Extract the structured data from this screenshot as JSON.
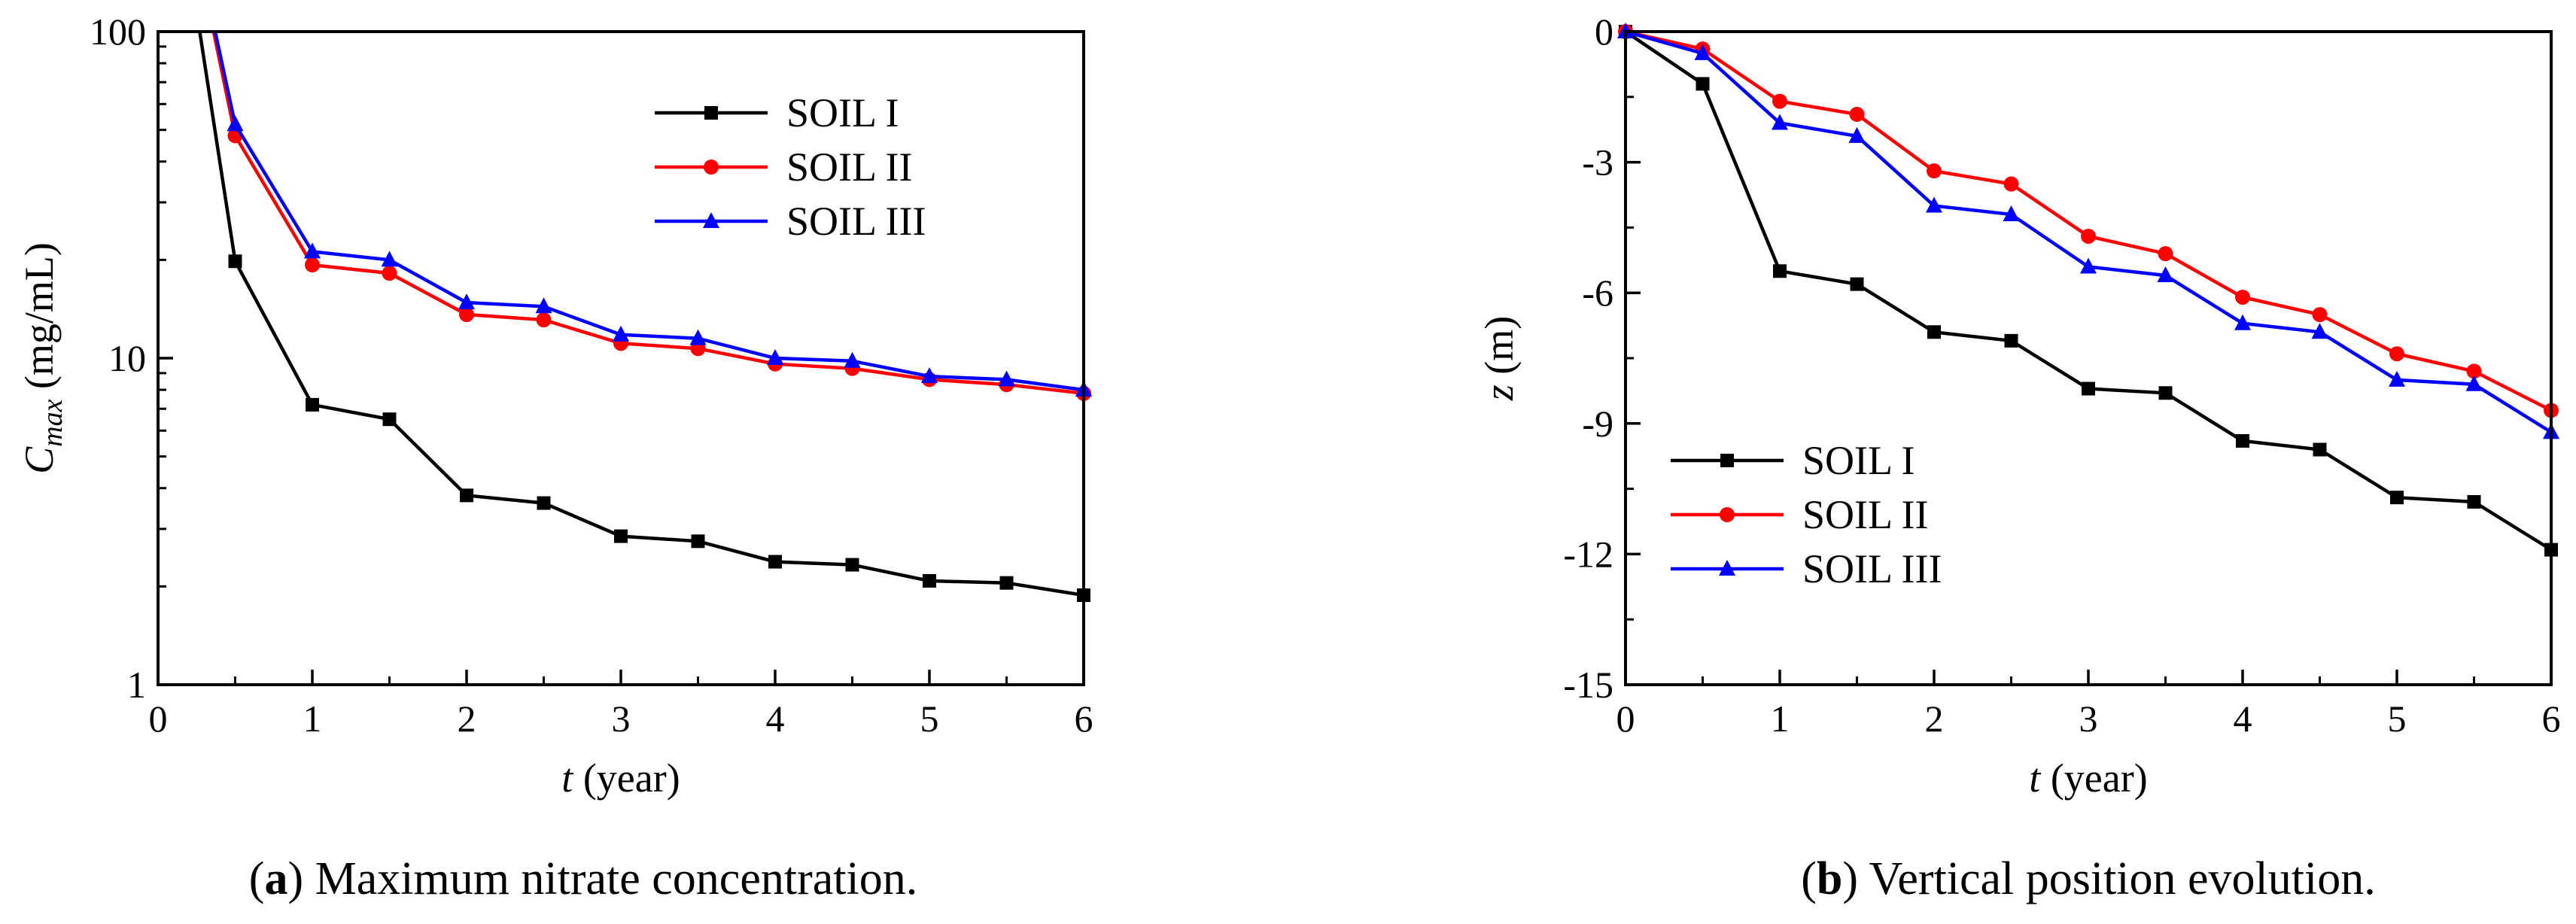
{
  "chart_data": [
    {
      "type": "line",
      "panel_label": "a",
      "caption": "Maximum nitrate concentration.",
      "xlabel_var": "t",
      "xlabel_unit": " (year)",
      "ylabel_var": "C",
      "ylabel_sub": "max",
      "ylabel_unit": " (mg/mL)",
      "xlim": [
        0,
        6
      ],
      "ylim": [
        1,
        100
      ],
      "yscale": "log",
      "xticks": [
        "0",
        "1",
        "2",
        "3",
        "4",
        "5",
        "6"
      ],
      "yticks": [
        {
          "value": 1,
          "label": "1"
        },
        {
          "value": 10,
          "label": "10"
        },
        {
          "value": 100,
          "label": "100"
        }
      ],
      "legend_position": "top-right",
      "series": [
        {
          "name": "SOIL I",
          "color": "#000000",
          "marker": "square",
          "points": [
            [
              0.27,
              100
            ],
            [
              0.5,
              19.8
            ],
            [
              1,
              7.2
            ],
            [
              1.5,
              6.5
            ],
            [
              2,
              3.8
            ],
            [
              2.5,
              3.6
            ],
            [
              3,
              2.85
            ],
            [
              3.5,
              2.75
            ],
            [
              4,
              2.38
            ],
            [
              4.5,
              2.33
            ],
            [
              5,
              2.08
            ],
            [
              5.5,
              2.05
            ],
            [
              6,
              1.88
            ]
          ]
        },
        {
          "name": "SOIL II",
          "color": "#ff0000",
          "marker": "circle",
          "points": [
            [
              0.36,
              100
            ],
            [
              0.5,
              48
            ],
            [
              1,
              19.3
            ],
            [
              1.5,
              18.2
            ],
            [
              2,
              13.6
            ],
            [
              2.5,
              13.1
            ],
            [
              3,
              11.1
            ],
            [
              3.5,
              10.7
            ],
            [
              4,
              9.6
            ],
            [
              4.5,
              9.3
            ],
            [
              5,
              8.6
            ],
            [
              5.5,
              8.3
            ],
            [
              6,
              7.8
            ]
          ]
        },
        {
          "name": "SOIL III",
          "color": "#0000ff",
          "marker": "triangle",
          "points": [
            [
              0.37,
              100
            ],
            [
              0.5,
              52
            ],
            [
              1,
              21.2
            ],
            [
              1.5,
              20
            ],
            [
              2,
              14.8
            ],
            [
              2.5,
              14.4
            ],
            [
              3,
              11.8
            ],
            [
              3.5,
              11.5
            ],
            [
              4,
              10
            ],
            [
              4.5,
              9.8
            ],
            [
              5,
              8.8
            ],
            [
              5.5,
              8.6
            ],
            [
              6,
              8
            ]
          ]
        }
      ]
    },
    {
      "type": "line",
      "panel_label": "b",
      "caption": "Vertical position evolution.",
      "xlabel_var": "t",
      "xlabel_unit": " (year)",
      "ylabel_var": "z",
      "ylabel_sub": "",
      "ylabel_unit": " (m)",
      "xlim": [
        0,
        6
      ],
      "ylim": [
        -15,
        0
      ],
      "yscale": "linear",
      "xticks": [
        "0",
        "1",
        "2",
        "3",
        "4",
        "5",
        "6"
      ],
      "yticks": [
        {
          "value": 0,
          "label": "0"
        },
        {
          "value": -3,
          "label": "-3"
        },
        {
          "value": -6,
          "label": "-6"
        },
        {
          "value": -9,
          "label": "-9"
        },
        {
          "value": -12,
          "label": "-12"
        },
        {
          "value": -15,
          "label": "-15"
        }
      ],
      "legend_position": "bottom-left",
      "series": [
        {
          "name": "SOIL I",
          "color": "#000000",
          "marker": "square",
          "points": [
            [
              0,
              0
            ],
            [
              0.5,
              -1.2
            ],
            [
              1,
              -5.5
            ],
            [
              1.5,
              -5.8
            ],
            [
              2,
              -6.9
            ],
            [
              2.5,
              -7.1
            ],
            [
              3,
              -8.2
            ],
            [
              3.5,
              -8.3
            ],
            [
              4,
              -9.4
            ],
            [
              4.5,
              -9.6
            ],
            [
              5,
              -10.7
            ],
            [
              5.5,
              -10.8
            ],
            [
              6,
              -11.9
            ]
          ]
        },
        {
          "name": "SOIL II",
          "color": "#ff0000",
          "marker": "circle",
          "points": [
            [
              0,
              0
            ],
            [
              0.5,
              -0.4
            ],
            [
              1,
              -1.6
            ],
            [
              1.5,
              -1.9
            ],
            [
              2,
              -3.2
            ],
            [
              2.5,
              -3.5
            ],
            [
              3,
              -4.7
            ],
            [
              3.5,
              -5.1
            ],
            [
              4,
              -6.1
            ],
            [
              4.5,
              -6.5
            ],
            [
              5,
              -7.4
            ],
            [
              5.5,
              -7.8
            ],
            [
              6,
              -8.7
            ]
          ]
        },
        {
          "name": "SOIL III",
          "color": "#0000ff",
          "marker": "triangle",
          "points": [
            [
              0,
              0
            ],
            [
              0.5,
              -0.5
            ],
            [
              1,
              -2.1
            ],
            [
              1.5,
              -2.4
            ],
            [
              2,
              -4
            ],
            [
              2.5,
              -4.2
            ],
            [
              3,
              -5.4
            ],
            [
              3.5,
              -5.6
            ],
            [
              4,
              -6.7
            ],
            [
              4.5,
              -6.9
            ],
            [
              5,
              -8
            ],
            [
              5.5,
              -8.1
            ],
            [
              6,
              -9.2
            ]
          ]
        }
      ]
    }
  ]
}
